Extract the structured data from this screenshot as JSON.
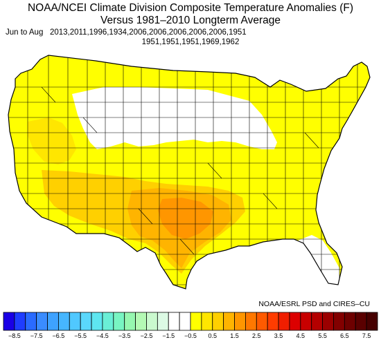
{
  "title": {
    "line1": "NOAA/NCEI Climate Division Composite Temperature Anomalies (F)",
    "line2": "Versus 1981–2010 Longterm Average"
  },
  "period": {
    "label": "Jun to Aug",
    "years_line1": "2013,2011,1996,1934,2006,2006,2006,2006,2006,1951",
    "years_line2": "1951,1951,1951,1969,1962"
  },
  "credit": "NOAA/ESRL PSD and CIRES–CU",
  "colorbar": {
    "bins": [
      {
        "color": "#1a00e6",
        "label": "−8.5"
      },
      {
        "color": "#1f3dff",
        "label": ""
      },
      {
        "color": "#2a6bff",
        "label": "−7.5"
      },
      {
        "color": "#3a8cff",
        "label": ""
      },
      {
        "color": "#3ea2ff",
        "label": "−6.5"
      },
      {
        "color": "#46b6ff",
        "label": ""
      },
      {
        "color": "#50c8ff",
        "label": "−5.5"
      },
      {
        "color": "#5ad8fc",
        "label": ""
      },
      {
        "color": "#5ee6f0",
        "label": "−4.5"
      },
      {
        "color": "#6aefd6",
        "label": ""
      },
      {
        "color": "#78f5c2",
        "label": "−3.5"
      },
      {
        "color": "#96f7b0",
        "label": ""
      },
      {
        "color": "#b4f9b4",
        "label": "−2.5"
      },
      {
        "color": "#caf9ce",
        "label": ""
      },
      {
        "color": "#dcfae4",
        "label": "−1.5"
      },
      {
        "color": "#ffffff",
        "label": ""
      },
      {
        "color": "#ffffff",
        "label": "−0.5"
      },
      {
        "color": "#ffff00",
        "label": ""
      },
      {
        "color": "#ffe600",
        "label": "0.5"
      },
      {
        "color": "#ffd000",
        "label": ""
      },
      {
        "color": "#ffb400",
        "label": "1.5"
      },
      {
        "color": "#ff9600",
        "label": ""
      },
      {
        "color": "#ff7800",
        "label": "2.5"
      },
      {
        "color": "#ff5a00",
        "label": ""
      },
      {
        "color": "#ff3c00",
        "label": "3.5"
      },
      {
        "color": "#f01e00",
        "label": ""
      },
      {
        "color": "#dc0000",
        "label": "4.5"
      },
      {
        "color": "#c80000",
        "label": ""
      },
      {
        "color": "#b40000",
        "label": "5.5"
      },
      {
        "color": "#9b0000",
        "label": ""
      },
      {
        "color": "#820000",
        "label": "6.5"
      },
      {
        "color": "#6e0000",
        "label": ""
      },
      {
        "color": "#5a0000",
        "label": "7.5"
      },
      {
        "color": "#460000",
        "label": ""
      }
    ]
  },
  "map": {
    "background": "#ffffff",
    "border_color": "#000000",
    "regions": [
      {
        "name": "west-coast",
        "anomaly": "0.5 to 1.5",
        "color": "#ffff00"
      },
      {
        "name": "great-basin",
        "anomaly": "1.5 to 2.5",
        "color": "#ffe600"
      },
      {
        "name": "north-central",
        "anomaly": "−0.5 to 0.5",
        "color": "#ffffff"
      },
      {
        "name": "southern-plains",
        "anomaly": "1.5 to 2.5",
        "color": "#ffd000"
      },
      {
        "name": "texas-core",
        "anomaly": "2.5 to 3.5",
        "color": "#ffb400"
      },
      {
        "name": "oklahoma-texas-peak",
        "anomaly": "3.5 to 4.5",
        "color": "#ff9600"
      },
      {
        "name": "east",
        "anomaly": "0.5 to 1.5",
        "color": "#ffff00"
      },
      {
        "name": "southeast-florida",
        "anomaly": "−0.5 to 0.5",
        "color": "#ffffff"
      }
    ]
  }
}
